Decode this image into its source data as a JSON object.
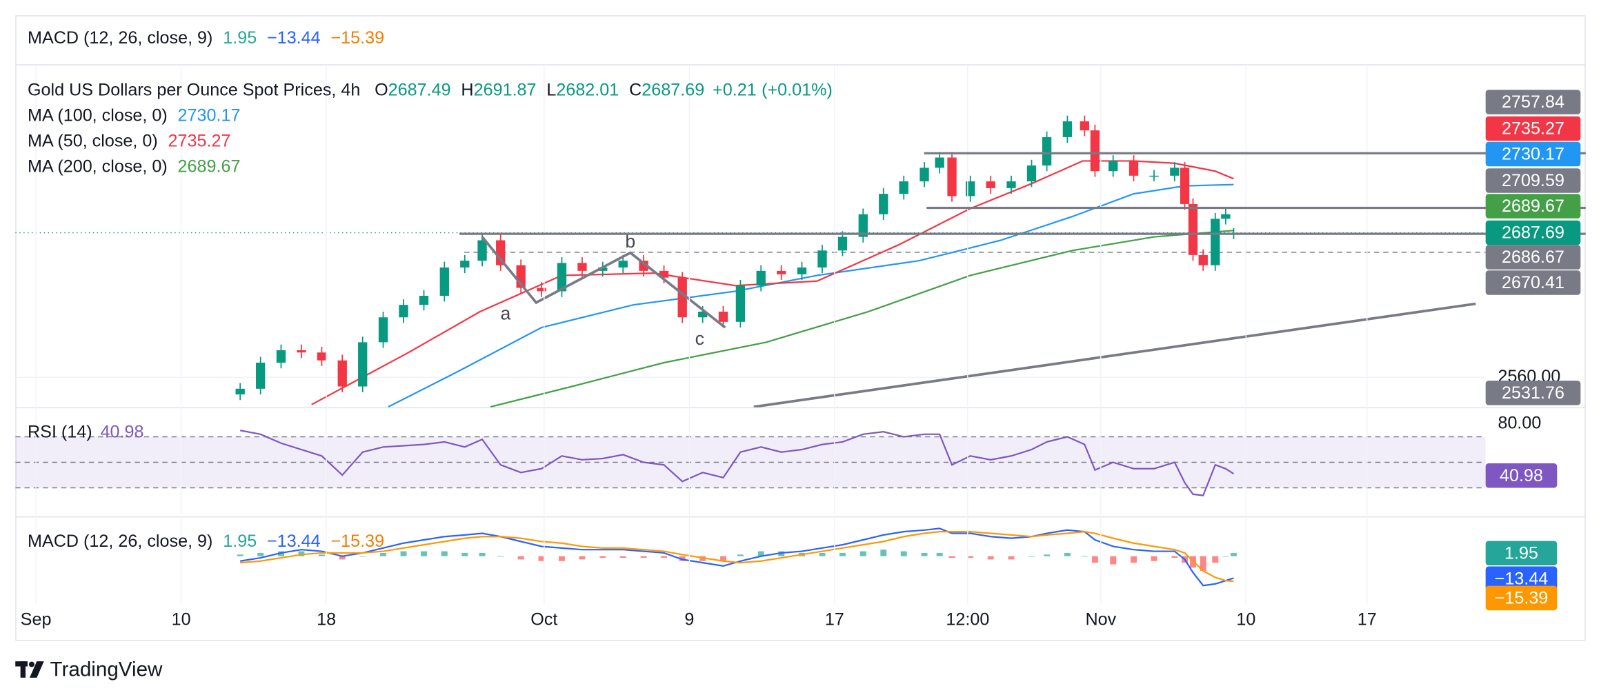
{
  "chart_data": {
    "type": "candlestick",
    "title": "Gold US Dollars per Ounce Spot Prices, 4h",
    "ohlc_labels": [
      "O",
      "H",
      "L",
      "C"
    ],
    "change": 0.21,
    "change_label": "+0.21",
    "change_pct": 0.01,
    "change_pct_label": "(+0.01%)",
    "x": [
      8.44,
      9.28,
      10.13,
      10.97,
      11.81,
      12.66,
      13.5,
      14.35,
      15.19,
      16.03,
      16.88,
      17.72,
      18.44,
      19.2,
      20.04,
      20.89,
      21.73,
      22.57,
      23.42,
      24.26,
      25.11,
      25.95,
      26.71,
      27.55,
      28.4,
      29.11,
      29.96,
      30.8,
      31.65,
      32.49,
      33.33,
      34.18,
      35.02,
      35.86,
      36.71,
      37.34,
      37.85,
      38.61,
      39.45,
      40.3,
      41.14,
      41.77,
      42.62,
      43.33,
      43.76,
      44.51,
      45.36,
      46.2,
      47.05,
      47.47,
      47.81,
      48.23,
      48.73,
      49.16,
      49.49
    ],
    "open": [
      2545,
      2550,
      2573,
      2584,
      2582,
      2575,
      2552,
      2591,
      2613,
      2624,
      2632,
      2657,
      2663,
      2681,
      2659,
      2639,
      2636,
      2661,
      2654,
      2657,
      2663,
      2654,
      2648,
      2613,
      2618,
      2609,
      2641,
      2654,
      2651,
      2657,
      2672,
      2684,
      2704,
      2722,
      2733,
      2745,
      2754,
      2720,
      2733,
      2727,
      2733,
      2747,
      2772,
      2786,
      2778,
      2742,
      2751,
      2738,
      2738,
      2745,
      2713,
      2668,
      2659,
      2700,
      2687.49
    ],
    "high": [
      2555,
      2578,
      2589,
      2589,
      2587,
      2580,
      2596,
      2618,
      2629,
      2637,
      2662,
      2668,
      2686,
      2686,
      2664,
      2644,
      2666,
      2666,
      2662,
      2668,
      2668,
      2659,
      2653,
      2623,
      2623,
      2646,
      2659,
      2659,
      2662,
      2677,
      2689,
      2709,
      2727,
      2738,
      2750,
      2759,
      2759,
      2738,
      2738,
      2738,
      2752,
      2777,
      2791,
      2791,
      2783,
      2756,
      2756,
      2743,
      2750,
      2750,
      2718,
      2673,
      2705,
      2709,
      2691.87
    ],
    "low": [
      2540,
      2545,
      2568,
      2577,
      2570,
      2547,
      2547,
      2586,
      2608,
      2619,
      2627,
      2652,
      2658,
      2654,
      2634,
      2631,
      2631,
      2649,
      2649,
      2652,
      2649,
      2643,
      2608,
      2608,
      2604,
      2604,
      2636,
      2646,
      2646,
      2652,
      2667,
      2679,
      2699,
      2717,
      2728,
      2740,
      2715,
      2715,
      2722,
      2722,
      2728,
      2742,
      2767,
      2773,
      2737,
      2737,
      2733,
      2733,
      2733,
      2708,
      2663,
      2654,
      2654,
      2695,
      2682.01
    ],
    "close": [
      2550,
      2573,
      2584,
      2582,
      2575,
      2552,
      2591,
      2613,
      2624,
      2632,
      2657,
      2663,
      2681,
      2659,
      2639,
      2636,
      2661,
      2654,
      2657,
      2663,
      2654,
      2648,
      2613,
      2618,
      2609,
      2641,
      2654,
      2651,
      2657,
      2672,
      2684,
      2704,
      2722,
      2733,
      2745,
      2754,
      2720,
      2733,
      2727,
      2733,
      2747,
      2772,
      2786,
      2778,
      2742,
      2751,
      2738,
      2738,
      2745,
      2713,
      2668,
      2659,
      2700,
      2704,
      2687.69
    ],
    "up_color": "#089981",
    "down_color": "#f23645",
    "xlim": [
      -0.85,
      59.9
    ],
    "xticks": [
      {
        "value": 0,
        "label": "Sep"
      },
      {
        "value": 6,
        "label": "10"
      },
      {
        "value": 12,
        "label": "18"
      },
      {
        "value": 21,
        "label": "Oct"
      },
      {
        "value": 27,
        "label": "9"
      },
      {
        "value": 33,
        "label": "17"
      },
      {
        "value": 38.5,
        "label": "12:00"
      },
      {
        "value": 44,
        "label": "Nov"
      },
      {
        "value": 50,
        "label": "10"
      },
      {
        "value": 55,
        "label": "17"
      }
    ],
    "ylim": [
      2533.7,
      2835.4
    ],
    "yticks": [
      {
        "value": 2560,
        "label": "2560.00"
      }
    ],
    "grid": true,
    "moving_averages": [
      {
        "name": "MA (100, close, 0)",
        "color": "#2196f3",
        "x": [
          14.56,
          17.51,
          20.89,
          24.68,
          28.9,
          32.28,
          36.5,
          39.87,
          42.83,
          45.36,
          47.47,
          49.49
        ],
        "values": [
          2534,
          2566,
          2604,
          2624,
          2636,
          2650,
          2663,
          2681,
          2702,
          2722,
          2729,
          2730.17
        ]
      },
      {
        "name": "MA (50, close, 0)",
        "color": "#f23645",
        "x": [
          11.39,
          15.4,
          18.35,
          21.73,
          25.53,
          28.9,
          32.28,
          35.65,
          38.61,
          41.14,
          43.25,
          45.36,
          47.05,
          48.73,
          49.49
        ],
        "values": [
          2536,
          2582,
          2618,
          2650,
          2652,
          2641,
          2645,
          2677,
          2709,
          2731,
          2751,
          2751,
          2749,
          2742,
          2735.27
        ]
      },
      {
        "name": "MA (200, close, 0)",
        "color": "#43a047",
        "x": [
          18.78,
          22.15,
          25.95,
          30.17,
          34.39,
          38.61,
          42.83,
          46.2,
          49.49
        ],
        "values": [
          2534,
          2552,
          2573,
          2591,
          2618,
          2650,
          2672,
          2684,
          2689.67
        ]
      }
    ],
    "levels": [
      {
        "value": 2757.84,
        "from": 36.7,
        "color": "#787b86",
        "dashed": false
      },
      {
        "value": 2709.59,
        "from": 36.8,
        "color": "#787b86",
        "dashed": false
      },
      {
        "value": 2686.67,
        "from": 17.5,
        "color": "#787b86",
        "dashed": false
      },
      {
        "value": 2670.41,
        "from": 17.7,
        "color": "#787b86",
        "dashed": true
      }
    ],
    "trendline": {
      "x": [
        29.66,
        59.49
      ],
      "values": [
        2534,
        2625
      ],
      "axis_value": 2531.76,
      "color": "#787b86"
    },
    "wave": {
      "x": [
        18.44,
        20.67,
        24.56,
        28.48
      ],
      "values": [
        2684,
        2626,
        2670,
        2604
      ],
      "labels": [
        null,
        "a",
        "b",
        "c"
      ],
      "color": "#787b86"
    },
    "rsi": {
      "name": "RSI (14)",
      "color": "#7e57c2",
      "ylim": [
        8.4,
        92.4
      ],
      "yticks": [
        {
          "value": 80,
          "label": "80.00"
        }
      ],
      "levels": [
        70,
        50,
        30
      ],
      "values": [
        75,
        72,
        65,
        60,
        55,
        40,
        58,
        62,
        63,
        64,
        66,
        62,
        68,
        48,
        42,
        45,
        55,
        52,
        53,
        56,
        50,
        48,
        35,
        42,
        38,
        58,
        62,
        58,
        60,
        64,
        66,
        72,
        74,
        70,
        72,
        72,
        48,
        55,
        52,
        55,
        60,
        66,
        70,
        64,
        44,
        50,
        45,
        45,
        50,
        34,
        25,
        24,
        48,
        45,
        40.98
      ]
    },
    "macd": {
      "name": "MACD (12, 26, close, 9)",
      "ylim": [
        -29.4,
        23.75
      ],
      "histogram": {
        "color": "#26a69a",
        "negative_color": "#ff5252",
        "values": [
          1,
          2,
          3,
          3,
          1,
          -2,
          0,
          2,
          3,
          3,
          3,
          2,
          2,
          0,
          -2,
          -3,
          -3,
          -2,
          -1,
          -1,
          -1,
          -1,
          -3,
          -3,
          -3,
          1,
          3,
          3,
          2,
          2,
          2,
          3,
          4,
          3,
          2,
          2,
          -1,
          -1,
          -2,
          -2,
          0,
          1,
          2,
          0,
          -4,
          -5,
          -4,
          -3,
          -1,
          -4,
          -7,
          -9,
          -4,
          0,
          1.95
        ]
      },
      "macd_line": {
        "color": "#2962ff",
        "last_label": "−13.44",
        "values": [
          -3,
          -1,
          2,
          4,
          3,
          0,
          2,
          5,
          8,
          10,
          12,
          13,
          14,
          12,
          9,
          6,
          5,
          4,
          4,
          4,
          3,
          2,
          -2,
          -4,
          -6,
          -3,
          0,
          2,
          3,
          5,
          7,
          10,
          13,
          15,
          16,
          17,
          14,
          14,
          12,
          11,
          12,
          14,
          16,
          15,
          10,
          6,
          4,
          3,
          3,
          -2,
          -10,
          -18,
          -17,
          -15,
          -13.44
        ]
      },
      "signal": {
        "color": "#ff9800",
        "last_label": "−15.39",
        "values": [
          -4,
          -3,
          -1,
          1,
          2,
          2,
          2,
          3,
          5,
          7,
          9,
          11,
          12,
          12,
          11,
          9,
          8,
          6,
          5,
          5,
          4,
          3,
          1,
          -1,
          -3,
          -4,
          -3,
          -1,
          1,
          3,
          5,
          7,
          9,
          12,
          14,
          15,
          15,
          15,
          14,
          13,
          12,
          13,
          14,
          15,
          14,
          11,
          8,
          6,
          4,
          2,
          -3,
          -9,
          -13,
          -15,
          -15.39
        ]
      }
    }
  },
  "brand": "TradingView"
}
